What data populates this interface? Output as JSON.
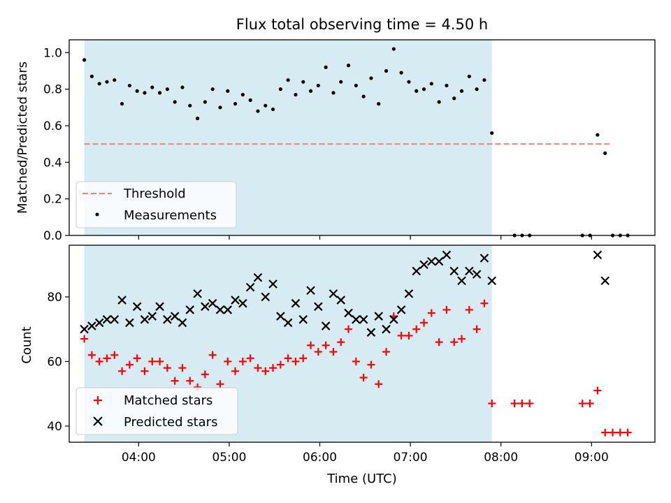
{
  "chart_data": [
    {
      "type": "scatter",
      "title": "Flux total observing time = 4.50 h",
      "xlabel": "",
      "ylabel": "Matched/Predicted stars",
      "xlim": [
        "03:14",
        "09:42"
      ],
      "ylim": [
        0.0,
        1.07
      ],
      "yticks": [
        0.0,
        0.2,
        0.4,
        0.6,
        0.8,
        1.0
      ],
      "ytick_labels": [
        "0.0",
        "0.2",
        "0.4",
        "0.6",
        "0.8",
        "1.0"
      ],
      "shaded_region": {
        "start": "03:24",
        "end": "07:54",
        "color": "#add8e6"
      },
      "legend_location": "lower-left",
      "series": [
        {
          "name": "Threshold",
          "style": "dashed-line",
          "color": "#f08080",
          "x": [
            "03:24",
            "09:12"
          ],
          "y": [
            0.5,
            0.5
          ]
        },
        {
          "name": "Measurements",
          "style": "dot",
          "color": "#000000",
          "x": [
            "03:24",
            "03:29",
            "03:34",
            "03:39",
            "03:44",
            "03:49",
            "03:54",
            "03:59",
            "04:04",
            "04:09",
            "04:14",
            "04:19",
            "04:24",
            "04:29",
            "04:34",
            "04:39",
            "04:44",
            "04:49",
            "04:54",
            "04:59",
            "05:04",
            "05:09",
            "05:14",
            "05:19",
            "05:24",
            "05:29",
            "05:34",
            "05:39",
            "05:44",
            "05:49",
            "05:54",
            "05:59",
            "06:04",
            "06:09",
            "06:14",
            "06:19",
            "06:24",
            "06:29",
            "06:34",
            "06:39",
            "06:44",
            "06:49",
            "06:54",
            "06:59",
            "07:04",
            "07:09",
            "07:14",
            "07:19",
            "07:24",
            "07:29",
            "07:34",
            "07:39",
            "07:44",
            "07:49",
            "07:54",
            "08:09",
            "08:14",
            "08:19",
            "08:54",
            "08:59",
            "09:04",
            "09:09",
            "09:14",
            "09:19",
            "09:24"
          ],
          "y": [
            0.96,
            0.87,
            0.83,
            0.84,
            0.85,
            0.72,
            0.82,
            0.79,
            0.78,
            0.81,
            0.78,
            0.8,
            0.73,
            0.81,
            0.71,
            0.64,
            0.73,
            0.8,
            0.7,
            0.79,
            0.72,
            0.77,
            0.74,
            0.68,
            0.71,
            0.69,
            0.8,
            0.85,
            0.77,
            0.84,
            0.79,
            0.82,
            0.92,
            0.78,
            0.84,
            0.93,
            0.82,
            0.76,
            0.86,
            0.72,
            0.9,
            1.02,
            0.89,
            0.84,
            0.79,
            0.8,
            0.83,
            0.73,
            0.82,
            0.75,
            0.79,
            0.87,
            0.8,
            0.85,
            0.56,
            0.0,
            0.0,
            0.0,
            0.0,
            0.0,
            0.55,
            0.45,
            0.0,
            0.0,
            0.0
          ]
        }
      ]
    },
    {
      "type": "scatter",
      "title": "",
      "xlabel": "Time (UTC)",
      "ylabel": "Count",
      "xlim": [
        "03:14",
        "09:42"
      ],
      "ylim": [
        35.0,
        96.0
      ],
      "yticks": [
        40,
        60,
        80
      ],
      "ytick_labels": [
        "40",
        "60",
        "80"
      ],
      "xticks": [
        "04:00",
        "05:00",
        "06:00",
        "07:00",
        "08:00",
        "09:00"
      ],
      "xtick_labels": [
        "04:00",
        "05:00",
        "06:00",
        "07:00",
        "08:00",
        "09:00"
      ],
      "shaded_region": {
        "start": "03:24",
        "end": "07:54",
        "color": "#add8e6"
      },
      "legend_location": "lower-left",
      "series": [
        {
          "name": "Matched stars",
          "style": "plus",
          "color": "#ff0000",
          "x": [
            "03:24",
            "03:29",
            "03:34",
            "03:39",
            "03:44",
            "03:49",
            "03:54",
            "03:59",
            "04:04",
            "04:09",
            "04:14",
            "04:19",
            "04:24",
            "04:29",
            "04:34",
            "04:39",
            "04:44",
            "04:49",
            "04:54",
            "04:59",
            "05:04",
            "05:09",
            "05:14",
            "05:19",
            "05:24",
            "05:29",
            "05:34",
            "05:39",
            "05:44",
            "05:49",
            "05:54",
            "05:59",
            "06:04",
            "06:09",
            "06:14",
            "06:19",
            "06:24",
            "06:29",
            "06:34",
            "06:39",
            "06:44",
            "06:49",
            "06:54",
            "06:59",
            "07:04",
            "07:09",
            "07:14",
            "07:19",
            "07:24",
            "07:29",
            "07:34",
            "07:39",
            "07:44",
            "07:49",
            "07:54",
            "08:09",
            "08:14",
            "08:19",
            "08:54",
            "08:59",
            "09:04",
            "09:09",
            "09:14",
            "09:19",
            "09:24"
          ],
          "y": [
            67,
            62,
            60,
            61,
            62,
            57,
            59,
            61,
            57,
            60,
            60,
            58,
            54,
            58,
            54,
            52,
            56,
            62,
            53,
            60,
            57,
            60,
            61,
            58,
            57,
            58,
            59,
            61,
            60,
            61,
            65,
            63,
            65,
            63,
            66,
            70,
            60,
            55,
            59,
            53,
            63,
            74,
            68,
            68,
            70,
            72,
            75,
            66,
            76,
            66,
            67,
            76,
            70,
            78,
            47,
            47,
            47,
            47,
            47,
            47,
            51,
            38,
            38,
            38,
            38
          ]
        },
        {
          "name": "Predicted stars",
          "style": "x",
          "color": "#000000",
          "x": [
            "03:24",
            "03:29",
            "03:34",
            "03:39",
            "03:44",
            "03:49",
            "03:54",
            "03:59",
            "04:04",
            "04:09",
            "04:14",
            "04:19",
            "04:24",
            "04:29",
            "04:34",
            "04:39",
            "04:44",
            "04:49",
            "04:54",
            "04:59",
            "05:04",
            "05:09",
            "05:14",
            "05:19",
            "05:24",
            "05:29",
            "05:34",
            "05:39",
            "05:44",
            "05:49",
            "05:54",
            "05:59",
            "06:04",
            "06:09",
            "06:14",
            "06:19",
            "06:24",
            "06:29",
            "06:34",
            "06:39",
            "06:44",
            "06:49",
            "06:54",
            "06:59",
            "07:04",
            "07:09",
            "07:14",
            "07:19",
            "07:24",
            "07:29",
            "07:34",
            "07:39",
            "07:44",
            "07:49",
            "07:54",
            "09:04",
            "09:09"
          ],
          "y": [
            70,
            71,
            72,
            73,
            73,
            79,
            72,
            77,
            73,
            74,
            77,
            73,
            74,
            72,
            76,
            81,
            77,
            78,
            76,
            76,
            79,
            78,
            83,
            86,
            80,
            84,
            74,
            72,
            78,
            73,
            82,
            77,
            71,
            81,
            79,
            75,
            73,
            73,
            69,
            74,
            70,
            73,
            76,
            81,
            88,
            90,
            91,
            91,
            93,
            88,
            85,
            88,
            87,
            92,
            85,
            93,
            85
          ]
        }
      ]
    }
  ]
}
